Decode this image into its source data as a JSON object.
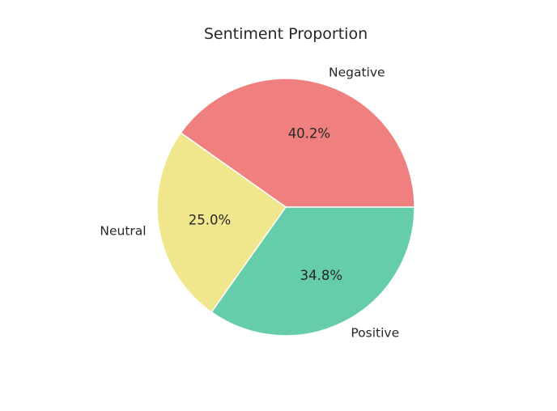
{
  "chart_data": {
    "type": "pie",
    "title": "Sentiment Proportion",
    "categories": [
      "Negative",
      "Neutral",
      "Positive"
    ],
    "values": [
      40.2,
      25.0,
      34.8
    ],
    "value_labels": [
      "40.2%",
      "25.0%",
      "34.8%"
    ],
    "colors": [
      "#f08080",
      "#f0e68c",
      "#66cdaa"
    ],
    "start_angle_deg": 0,
    "direction": "counterclockwise",
    "legend": "none"
  }
}
